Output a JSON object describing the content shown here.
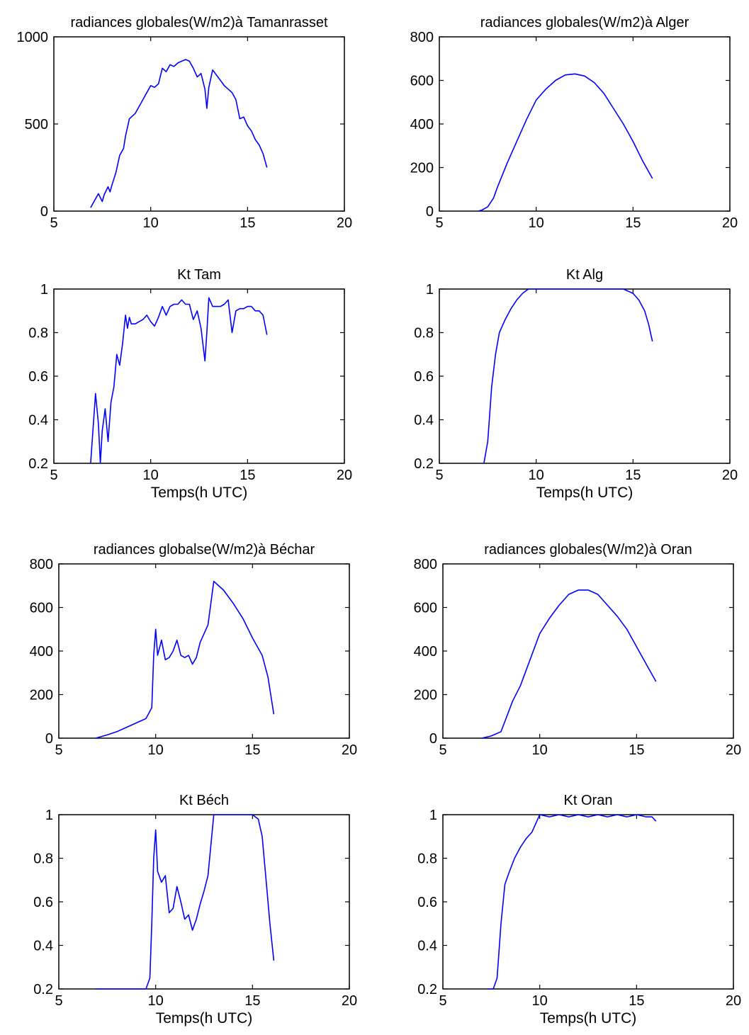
{
  "colors": {
    "line": "#0000ff",
    "axes": "#000000",
    "background": "#ffffff"
  },
  "chart_data": [
    {
      "type": "line",
      "title": "radiances globales(W/m2)à Tamanrasset",
      "xlabel": "",
      "xlim": [
        5,
        20
      ],
      "ylim": [
        0,
        1000
      ],
      "xticks": [
        5,
        10,
        15,
        20
      ],
      "yticks": [
        0,
        500,
        1000
      ],
      "xtick_labels": [
        "5",
        "10",
        "15",
        "20"
      ],
      "ytick_labels": [
        "0",
        "500",
        "1000"
      ],
      "series": [
        {
          "x": [
            6.9,
            7.1,
            7.3,
            7.5,
            7.6,
            7.8,
            7.9,
            8.0,
            8.2,
            8.4,
            8.6,
            8.7,
            8.9,
            9.0,
            9.2,
            9.4,
            9.6,
            9.8,
            10.0,
            10.2,
            10.4,
            10.6,
            10.8,
            11.0,
            11.2,
            11.4,
            11.6,
            11.8,
            12.0,
            12.2,
            12.4,
            12.6,
            12.8,
            12.9,
            13.0,
            13.2,
            13.4,
            13.6,
            13.8,
            14.0,
            14.2,
            14.4,
            14.6,
            14.8,
            15.0,
            15.2,
            15.4,
            15.6,
            15.8,
            16.0
          ],
          "y": [
            20,
            60,
            100,
            55,
            95,
            140,
            110,
            150,
            220,
            320,
            360,
            430,
            530,
            540,
            560,
            600,
            640,
            680,
            720,
            710,
            730,
            820,
            800,
            840,
            830,
            850,
            860,
            870,
            860,
            820,
            770,
            790,
            700,
            590,
            710,
            810,
            780,
            750,
            720,
            700,
            680,
            640,
            530,
            540,
            490,
            460,
            410,
            380,
            330,
            250
          ]
        }
      ]
    },
    {
      "type": "line",
      "title": "radiances globales(W/m2)à Alger",
      "xlabel": "",
      "xlim": [
        5,
        20
      ],
      "ylim": [
        0,
        800
      ],
      "xticks": [
        5,
        10,
        15,
        20
      ],
      "yticks": [
        0,
        200,
        400,
        600,
        800
      ],
      "xtick_labels": [
        "5",
        "10",
        "15",
        "20"
      ],
      "ytick_labels": [
        "0",
        "200",
        "400",
        "600",
        "800"
      ],
      "series": [
        {
          "x": [
            7.0,
            7.2,
            7.5,
            7.8,
            8.0,
            8.5,
            9.0,
            9.5,
            10.0,
            10.5,
            11.0,
            11.5,
            12.0,
            12.5,
            13.0,
            13.5,
            14.0,
            14.5,
            15.0,
            15.5,
            16.0
          ],
          "y": [
            0,
            5,
            20,
            60,
            110,
            220,
            320,
            420,
            510,
            560,
            600,
            625,
            630,
            620,
            590,
            540,
            470,
            400,
            320,
            230,
            150
          ]
        }
      ]
    },
    {
      "type": "line",
      "title": "Kt Tam",
      "xlabel": "Temps(h UTC)",
      "xlim": [
        5,
        20
      ],
      "ylim": [
        0.2,
        1
      ],
      "xticks": [
        5,
        10,
        15,
        20
      ],
      "yticks": [
        0.2,
        0.4,
        0.6,
        0.8,
        1.0
      ],
      "xtick_labels": [
        "5",
        "10",
        "15",
        "20"
      ],
      "ytick_labels": [
        "0.2",
        "0.4",
        "0.6",
        "0.8",
        "1"
      ],
      "series": [
        {
          "x": [
            6.9,
            7.0,
            7.15,
            7.3,
            7.4,
            7.5,
            7.65,
            7.8,
            7.95,
            8.1,
            8.25,
            8.4,
            8.55,
            8.7,
            8.8,
            8.9,
            9.0,
            9.2,
            9.4,
            9.6,
            9.8,
            10.0,
            10.2,
            10.4,
            10.6,
            10.8,
            11.0,
            11.2,
            11.4,
            11.6,
            11.8,
            12.0,
            12.2,
            12.4,
            12.6,
            12.8,
            12.9,
            13.0,
            13.2,
            13.4,
            13.6,
            13.8,
            14.0,
            14.2,
            14.4,
            14.6,
            14.8,
            15.0,
            15.2,
            15.4,
            15.6,
            15.8,
            16.0
          ],
          "y": [
            0.2,
            0.33,
            0.52,
            0.38,
            0.2,
            0.35,
            0.45,
            0.3,
            0.48,
            0.55,
            0.7,
            0.65,
            0.75,
            0.88,
            0.82,
            0.87,
            0.84,
            0.84,
            0.85,
            0.86,
            0.88,
            0.85,
            0.83,
            0.87,
            0.92,
            0.88,
            0.92,
            0.93,
            0.93,
            0.95,
            0.93,
            0.93,
            0.86,
            0.9,
            0.82,
            0.67,
            0.8,
            0.96,
            0.92,
            0.92,
            0.92,
            0.93,
            0.95,
            0.8,
            0.9,
            0.91,
            0.91,
            0.92,
            0.92,
            0.9,
            0.9,
            0.88,
            0.79
          ]
        }
      ]
    },
    {
      "type": "line",
      "title": "Kt Alg",
      "xlabel": "Temps(h UTC)",
      "xlim": [
        5,
        20
      ],
      "ylim": [
        0.2,
        1
      ],
      "xticks": [
        5,
        10,
        15,
        20
      ],
      "yticks": [
        0.2,
        0.4,
        0.6,
        0.8,
        1.0
      ],
      "xtick_labels": [
        "5",
        "10",
        "15",
        "20"
      ],
      "ytick_labels": [
        "0.2",
        "0.4",
        "0.6",
        "0.8",
        "1"
      ],
      "series": [
        {
          "x": [
            7.3,
            7.5,
            7.7,
            7.9,
            8.1,
            8.4,
            8.7,
            9.0,
            9.3,
            9.6,
            10.0,
            10.5,
            11.0,
            11.5,
            12.0,
            12.5,
            13.0,
            13.5,
            14.0,
            14.5,
            15.0,
            15.3,
            15.6,
            15.8,
            16.0
          ],
          "y": [
            0.2,
            0.3,
            0.55,
            0.7,
            0.8,
            0.86,
            0.91,
            0.95,
            0.98,
            1.0,
            1.0,
            1.0,
            1.0,
            1.0,
            1.0,
            1.0,
            1.0,
            1.0,
            1.0,
            1.0,
            0.98,
            0.95,
            0.9,
            0.84,
            0.76
          ]
        }
      ]
    },
    {
      "type": "line",
      "title": "radiances globalse(W/m2)à Béchar",
      "xlabel": "",
      "xlim": [
        5,
        20
      ],
      "ylim": [
        0,
        800
      ],
      "xticks": [
        5,
        10,
        15,
        20
      ],
      "yticks": [
        0,
        200,
        400,
        600,
        800
      ],
      "xtick_labels": [
        "5",
        "10",
        "15",
        "20"
      ],
      "ytick_labels": [
        "0",
        "200",
        "400",
        "600",
        "800"
      ],
      "series": [
        {
          "x": [
            6.9,
            7.5,
            8.0,
            8.5,
            9.0,
            9.5,
            9.8,
            9.9,
            10.0,
            10.1,
            10.3,
            10.5,
            10.7,
            10.9,
            11.1,
            11.3,
            11.5,
            11.7,
            11.9,
            12.1,
            12.3,
            12.5,
            12.7,
            13.0,
            13.5,
            14.0,
            14.5,
            15.0,
            15.5,
            15.8,
            16.1
          ],
          "y": [
            0,
            15,
            30,
            50,
            70,
            90,
            140,
            380,
            500,
            380,
            450,
            360,
            370,
            400,
            450,
            380,
            370,
            380,
            340,
            370,
            440,
            480,
            520,
            720,
            680,
            620,
            550,
            460,
            380,
            280,
            110
          ]
        }
      ]
    },
    {
      "type": "line",
      "title": "radiances globales(W/m2)à Oran",
      "xlabel": "",
      "xlim": [
        5,
        20
      ],
      "ylim": [
        0,
        800
      ],
      "xticks": [
        5,
        10,
        15,
        20
      ],
      "yticks": [
        0,
        200,
        400,
        600,
        800
      ],
      "xtick_labels": [
        "5",
        "10",
        "15",
        "20"
      ],
      "ytick_labels": [
        "0",
        "200",
        "400",
        "600",
        "800"
      ],
      "series": [
        {
          "x": [
            7.0,
            7.5,
            8.0,
            8.3,
            8.6,
            9.0,
            9.5,
            10.0,
            10.5,
            11.0,
            11.5,
            12.0,
            12.5,
            13.0,
            13.5,
            14.0,
            14.5,
            15.0,
            15.5,
            16.0
          ],
          "y": [
            0,
            10,
            30,
            100,
            170,
            240,
            360,
            480,
            550,
            610,
            660,
            680,
            680,
            660,
            610,
            560,
            500,
            420,
            340,
            260
          ]
        }
      ]
    },
    {
      "type": "line",
      "title": "Kt Béch",
      "xlabel": "Temps(h UTC)",
      "xlim": [
        5,
        20
      ],
      "ylim": [
        0.2,
        1
      ],
      "xticks": [
        5,
        10,
        15,
        20
      ],
      "yticks": [
        0.2,
        0.4,
        0.6,
        0.8,
        1.0
      ],
      "xtick_labels": [
        "5",
        "10",
        "15",
        "20"
      ],
      "ytick_labels": [
        "0.2",
        "0.4",
        "0.6",
        "0.8",
        "1"
      ],
      "series": [
        {
          "x": [
            6.9,
            7.5,
            8.0,
            8.5,
            9.0,
            9.5,
            9.7,
            9.8,
            9.9,
            10.0,
            10.1,
            10.3,
            10.5,
            10.7,
            10.9,
            11.1,
            11.3,
            11.5,
            11.7,
            11.9,
            12.1,
            12.3,
            12.5,
            12.7,
            13.0,
            13.5,
            14.0,
            14.5,
            15.0,
            15.3,
            15.5,
            15.7,
            15.9,
            16.1
          ],
          "y": [
            0.2,
            0.2,
            0.2,
            0.2,
            0.2,
            0.2,
            0.25,
            0.5,
            0.8,
            0.93,
            0.74,
            0.69,
            0.72,
            0.55,
            0.57,
            0.67,
            0.6,
            0.52,
            0.54,
            0.47,
            0.52,
            0.59,
            0.65,
            0.72,
            1.0,
            1.0,
            1.0,
            1.0,
            1.0,
            0.98,
            0.9,
            0.7,
            0.5,
            0.33
          ]
        }
      ]
    },
    {
      "type": "line",
      "title": "Kt Oran",
      "xlabel": "Temps(h UTC)",
      "xlim": [
        5,
        20
      ],
      "ylim": [
        0.2,
        1
      ],
      "xticks": [
        5,
        10,
        15,
        20
      ],
      "yticks": [
        0.2,
        0.4,
        0.6,
        0.8,
        1.0
      ],
      "xtick_labels": [
        "5",
        "10",
        "15",
        "20"
      ],
      "ytick_labels": [
        "0.2",
        "0.4",
        "0.6",
        "0.8",
        "1"
      ],
      "series": [
        {
          "x": [
            7.3,
            7.6,
            7.8,
            8.0,
            8.2,
            8.4,
            8.7,
            9.0,
            9.3,
            9.6,
            9.8,
            10.0,
            10.5,
            11.0,
            11.5,
            12.0,
            12.5,
            13.0,
            13.5,
            14.0,
            14.5,
            15.0,
            15.5,
            15.8,
            16.0
          ],
          "y": [
            0.2,
            0.2,
            0.25,
            0.5,
            0.68,
            0.73,
            0.8,
            0.85,
            0.89,
            0.92,
            0.96,
            1.0,
            0.99,
            1.0,
            0.99,
            1.0,
            0.99,
            1.0,
            0.99,
            1.0,
            0.99,
            1.0,
            0.99,
            0.99,
            0.97
          ]
        }
      ]
    }
  ]
}
